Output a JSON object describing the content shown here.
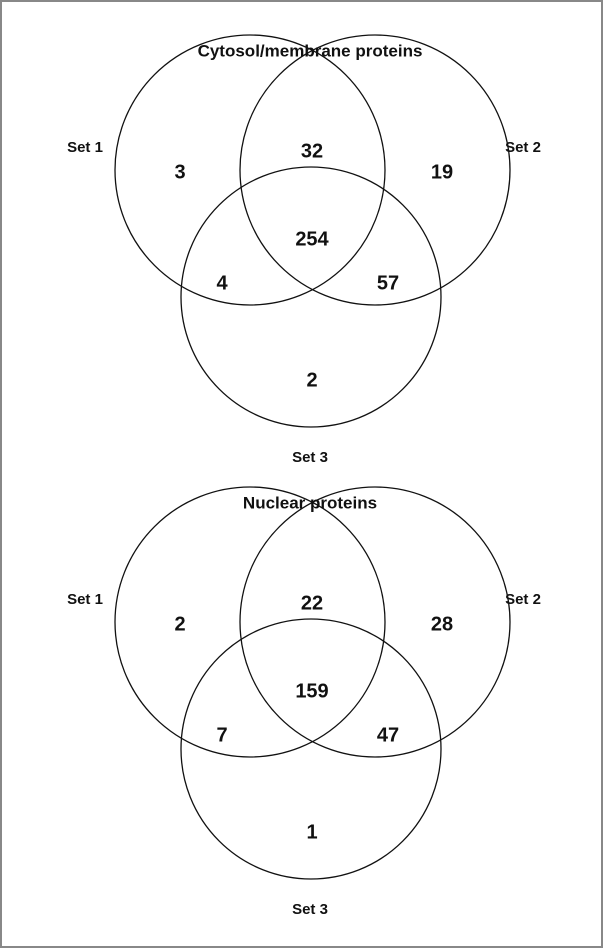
{
  "diagrams": [
    {
      "title": "Cytosol/membrane proteins",
      "sets": [
        "Set 1",
        "Set 2",
        "Set 3"
      ],
      "regions": {
        "only_1": 3,
        "1_2": 32,
        "only_2": 19,
        "all": 254,
        "1_3": 4,
        "2_3": 57,
        "only_3": 2
      }
    },
    {
      "title": "Nuclear proteins",
      "sets": [
        "Set 1",
        "Set 2",
        "Set 3"
      ],
      "regions": {
        "only_1": 2,
        "1_2": 22,
        "only_2": 28,
        "all": 159,
        "1_3": 7,
        "2_3": 47,
        "only_3": 1
      }
    }
  ]
}
